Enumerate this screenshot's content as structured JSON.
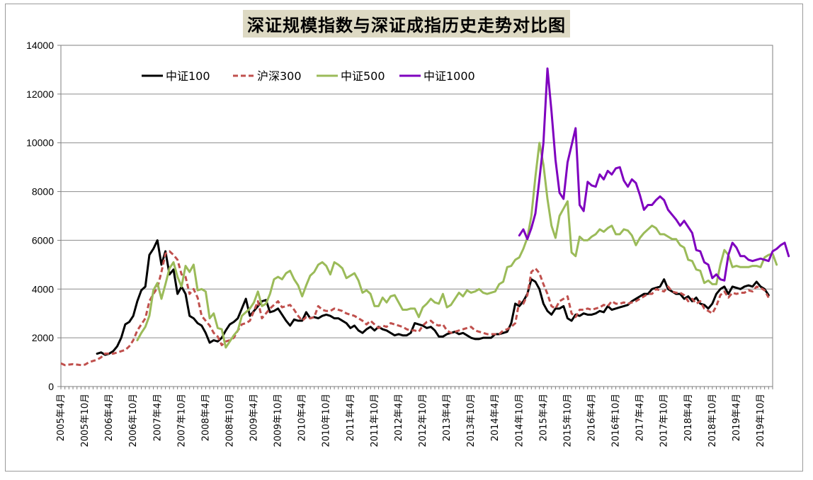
{
  "chart_data": {
    "type": "line",
    "title": "深证规模指数与深证成指历史走势对比图",
    "xlabel": "",
    "ylabel": "",
    "ylim": [
      0,
      14000
    ],
    "yticks": [
      0,
      2000,
      4000,
      6000,
      8000,
      10000,
      12000,
      14000
    ],
    "grid": "horizontal",
    "legend_position": "top-left",
    "x_start": "2005-04",
    "x_end": "2020-01",
    "x_tick_labels": [
      "2005年4月",
      "2005年10月",
      "2006年4月",
      "2006年10月",
      "2007年4月",
      "2007年10月",
      "2008年4月",
      "2008年10月",
      "2009年4月",
      "2009年10月",
      "2010年4月",
      "2010年10月",
      "2011年4月",
      "2011年10月",
      "2012年4月",
      "2012年10月",
      "2013年4月",
      "2013年10月",
      "2014年4月",
      "2014年10月",
      "2015年4月",
      "2015年10月",
      "2016年4月",
      "2016年10月",
      "2017年4月",
      "2017年10月",
      "2018年4月",
      "2018年10月",
      "2019年4月",
      "2019年10月"
    ],
    "series": [
      {
        "name": "中证100",
        "color": "#000000",
        "style": "solid",
        "start": "2006-01",
        "values": [
          1350,
          1400,
          1300,
          1350,
          1450,
          1650,
          2000,
          2550,
          2650,
          2900,
          3500,
          3950,
          4100,
          5400,
          5650,
          6000,
          5000,
          5550,
          4600,
          4800,
          3800,
          4100,
          3800,
          2900,
          2800,
          2600,
          2500,
          2200,
          1800,
          1900,
          1850,
          2000,
          2300,
          2550,
          2650,
          2800,
          3200,
          3600,
          2900,
          3100,
          3300,
          3500,
          3550,
          3050,
          3100,
          3200,
          2950,
          2700,
          2500,
          2750,
          2700,
          2700,
          3050,
          2800,
          2850,
          2800,
          2900,
          2950,
          2900,
          2800,
          2800,
          2700,
          2600,
          2400,
          2500,
          2300,
          2200,
          2350,
          2450,
          2300,
          2450,
          2350,
          2300,
          2200,
          2100,
          2150,
          2100,
          2100,
          2200,
          2600,
          2550,
          2500,
          2400,
          2450,
          2300,
          2050,
          2050,
          2150,
          2200,
          2250,
          2150,
          2200,
          2100,
          2000,
          1950,
          1950,
          2000,
          2000,
          2000,
          2150,
          2150,
          2200,
          2250,
          2600,
          3400,
          3300,
          3500,
          3800,
          4400,
          4300,
          4000,
          3400,
          3100,
          2950,
          3200,
          3200,
          3300,
          2800,
          2700,
          2950,
          2900,
          3000,
          2950,
          2950,
          3000,
          3100,
          3050,
          3300,
          3150,
          3200,
          3250,
          3300,
          3350,
          3500,
          3600,
          3700,
          3800,
          3800,
          4000,
          4050,
          4100,
          4400,
          4000,
          3900,
          3800,
          3800,
          3600,
          3700,
          3500,
          3650,
          3400,
          3350,
          3200,
          3400,
          3800,
          4000,
          4100,
          3800,
          4100,
          4050,
          4000,
          4100,
          4150,
          4100,
          4300,
          4100,
          4000,
          3750
        ]
      },
      {
        "name": "沪深300",
        "color": "#c0504d",
        "style": "dashed",
        "start": "2005-04",
        "values": [
          950,
          880,
          900,
          920,
          900,
          880,
          900,
          1000,
          1050,
          1100,
          1200,
          1350,
          1350,
          1350,
          1400,
          1450,
          1500,
          1650,
          1900,
          2300,
          2550,
          2800,
          3500,
          3800,
          4050,
          4700,
          5450,
          5550,
          5400,
          5200,
          4600,
          4500,
          3800,
          4000,
          3650,
          2900,
          2700,
          2500,
          2200,
          2050,
          1700,
          1850,
          1900,
          2000,
          2300,
          2550,
          2600,
          2700,
          3100,
          3500,
          2800,
          3000,
          3200,
          3350,
          3500,
          3250,
          3300,
          3350,
          3150,
          2900,
          2700,
          2850,
          2800,
          2850,
          3300,
          3150,
          3100,
          3100,
          3200,
          3150,
          3100,
          3000,
          2950,
          2900,
          2800,
          2700,
          2550,
          2700,
          2550,
          2400,
          2500,
          2450,
          2600,
          2550,
          2500,
          2450,
          2350,
          2300,
          2300,
          2250,
          2500,
          2650,
          2700,
          2550,
          2500,
          2550,
          2300,
          2200,
          2250,
          2300,
          2350,
          2400,
          2450,
          2300,
          2250,
          2200,
          2150,
          2150,
          2150,
          2150,
          2300,
          2350,
          2450,
          2600,
          3500,
          3400,
          3750,
          4700,
          4850,
          4650,
          4200,
          3800,
          3300,
          3200,
          3500,
          3600,
          3700,
          3000,
          2850,
          3150,
          3150,
          3200,
          3150,
          3200,
          3250,
          3350,
          3300,
          3500,
          3400,
          3400,
          3450,
          3400,
          3450,
          3500,
          3600,
          3700,
          3800,
          3800,
          4000,
          3950,
          3900,
          4100,
          3900,
          3850,
          3850,
          3750,
          3500,
          3600,
          3400,
          3500,
          3200,
          3100,
          3000,
          3300,
          3750,
          3900,
          3650,
          3850,
          3800,
          3850,
          3850,
          3950,
          3900,
          4100,
          4050,
          3950,
          3650
        ]
      },
      {
        "name": "中证500",
        "color": "#9bbb59",
        "style": "solid",
        "start": "2006-11",
        "values": [
          1900,
          2200,
          2450,
          2900,
          3950,
          4250,
          3600,
          4200,
          4850,
          5100,
          4500,
          4100,
          4950,
          4700,
          5000,
          3950,
          4000,
          3900,
          2800,
          3000,
          2400,
          2350,
          1600,
          1850,
          2100,
          2300,
          2900,
          3050,
          3200,
          3450,
          3900,
          3300,
          3400,
          3800,
          4400,
          4500,
          4400,
          4650,
          4750,
          4400,
          4150,
          3700,
          4150,
          4550,
          4700,
          5000,
          5100,
          4950,
          4600,
          5100,
          5000,
          4850,
          4450,
          4550,
          4650,
          4350,
          3850,
          3950,
          3800,
          3300,
          3300,
          3650,
          3450,
          3700,
          3750,
          3450,
          3150,
          3150,
          3200,
          3200,
          2850,
          3250,
          3400,
          3600,
          3450,
          3400,
          3800,
          3250,
          3350,
          3600,
          3850,
          3700,
          3950,
          3850,
          3900,
          4000,
          3850,
          3800,
          3850,
          3900,
          4200,
          4300,
          4900,
          4950,
          5200,
          5300,
          5650,
          6100,
          7000,
          8600,
          10000,
          9100,
          7700,
          6600,
          6100,
          7000,
          7300,
          7600,
          5500,
          5350,
          6150,
          6000,
          6000,
          6150,
          6250,
          6450,
          6350,
          6500,
          6600,
          6250,
          6250,
          6450,
          6400,
          6200,
          5800,
          6100,
          6300,
          6450,
          6600,
          6500,
          6250,
          6250,
          6150,
          6050,
          6050,
          5800,
          5700,
          5200,
          5150,
          4800,
          4750,
          4250,
          4350,
          4200,
          4200,
          5000,
          5600,
          5400,
          4900,
          4950,
          4900,
          4900,
          4900,
          4950,
          4950,
          4900,
          5300,
          5400,
          5450,
          5000
        ]
      },
      {
        "name": "中证1000",
        "color": "#7f00bf",
        "style": "solid",
        "start": "2014-10",
        "values": [
          6200,
          6450,
          6050,
          6500,
          7100,
          8500,
          10000,
          13050,
          11300,
          9300,
          7950,
          7700,
          9200,
          9900,
          10600,
          7450,
          7200,
          8400,
          8250,
          8200,
          8700,
          8500,
          8850,
          8700,
          8950,
          9000,
          8450,
          8200,
          8500,
          8350,
          7850,
          7250,
          7450,
          7450,
          7650,
          7800,
          7650,
          7250,
          7050,
          6850,
          6600,
          6800,
          6550,
          6300,
          5600,
          5550,
          5100,
          5000,
          4450,
          4600,
          4400,
          4350,
          5400,
          5900,
          5700,
          5350,
          5350,
          5200,
          5150,
          5200,
          5250,
          5200,
          5150,
          5550,
          5650,
          5800,
          5900,
          5350
        ]
      }
    ]
  }
}
